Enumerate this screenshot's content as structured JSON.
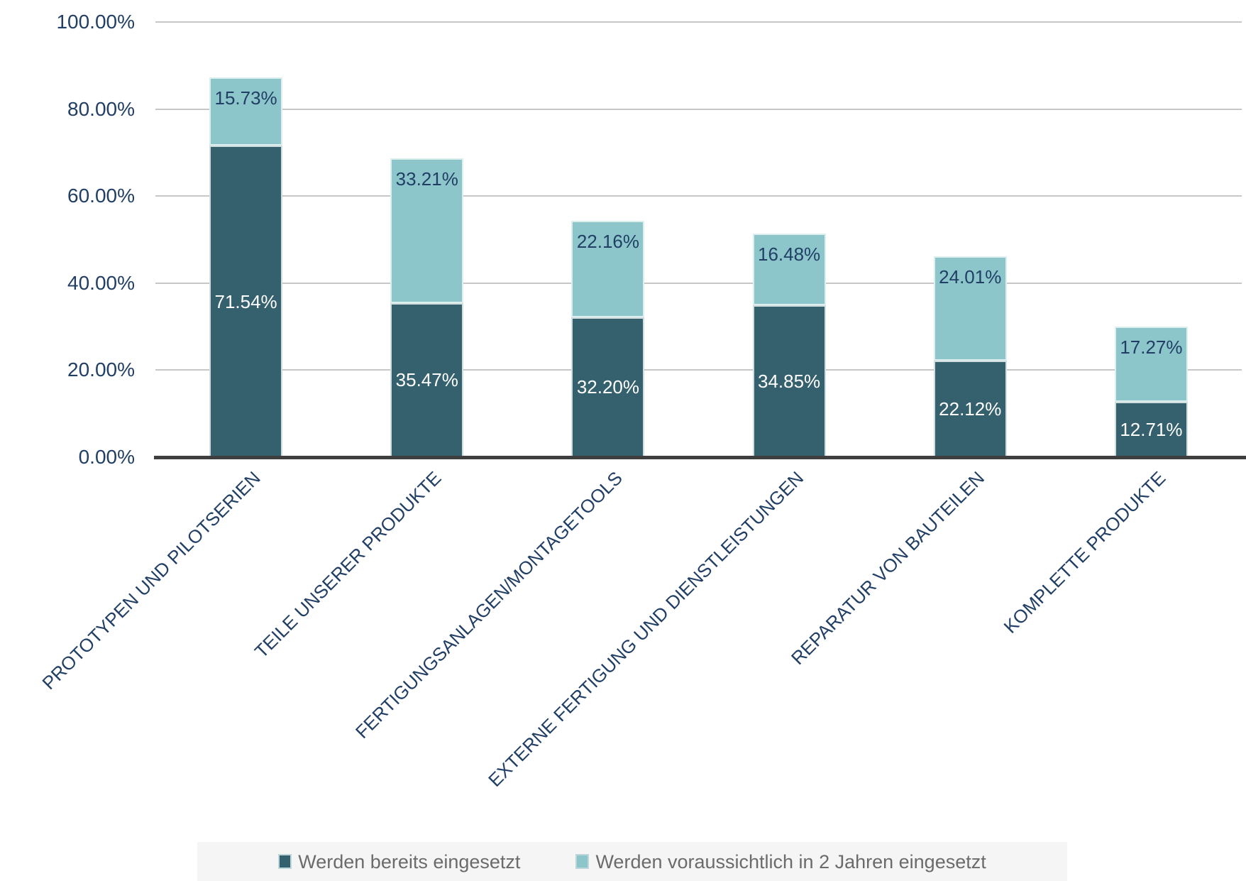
{
  "chart_data": {
    "type": "bar",
    "stacked": true,
    "title": "",
    "xlabel": "",
    "ylabel": "",
    "categories": [
      "PROTOTYPEN UND PILOTSERIEN",
      "TEILE UNSERER PRODUKTE",
      "FERTIGUNGSANLAGEN/MONTAGETOOLS",
      "EXTERNE FERTIGUNG UND DIENSTLEISTUNGEN",
      "REPARATUR VON BAUTEILEN",
      "KOMPLETTE PRODUKTE"
    ],
    "series": [
      {
        "name": "Werden bereits eingesetzt",
        "color": "#35606E",
        "label_color": "#ffffff",
        "label_placement": "center",
        "values": [
          71.54,
          35.47,
          32.2,
          34.85,
          22.12,
          12.71
        ],
        "labels": [
          "71.54%",
          "35.47%",
          "32.20%",
          "34.85%",
          "22.12%",
          "12.71%"
        ]
      },
      {
        "name": "Werden voraussichtlich in 2 Jahren eingesetzt",
        "color": "#8CC6CB",
        "label_color": "#213F65",
        "label_placement": "inside-top",
        "values": [
          15.73,
          33.21,
          22.16,
          16.48,
          24.01,
          17.27
        ],
        "labels": [
          "15.73%",
          "33.21%",
          "22.16%",
          "16.48%",
          "24.01%",
          "17.27%"
        ]
      }
    ],
    "y_axis": {
      "range": [
        0,
        100
      ],
      "tick_values": [
        0,
        20,
        40,
        60,
        80,
        100
      ],
      "tick_labels": [
        "0.00%",
        "20.00%",
        "40.00%",
        "60.00%",
        "80.00%",
        "100.00%"
      ]
    },
    "grid": true,
    "legend_position": "bottom"
  },
  "styles": {
    "background": "#ffffff",
    "grid_color": "#c7c7c7",
    "axis_line_color": "#3f3f3f",
    "tick_label_color": "#213F65",
    "category_label_color": "#213F65",
    "legend_text_color": "#6b6b6b",
    "legend_bg": "#f5f5f6"
  }
}
